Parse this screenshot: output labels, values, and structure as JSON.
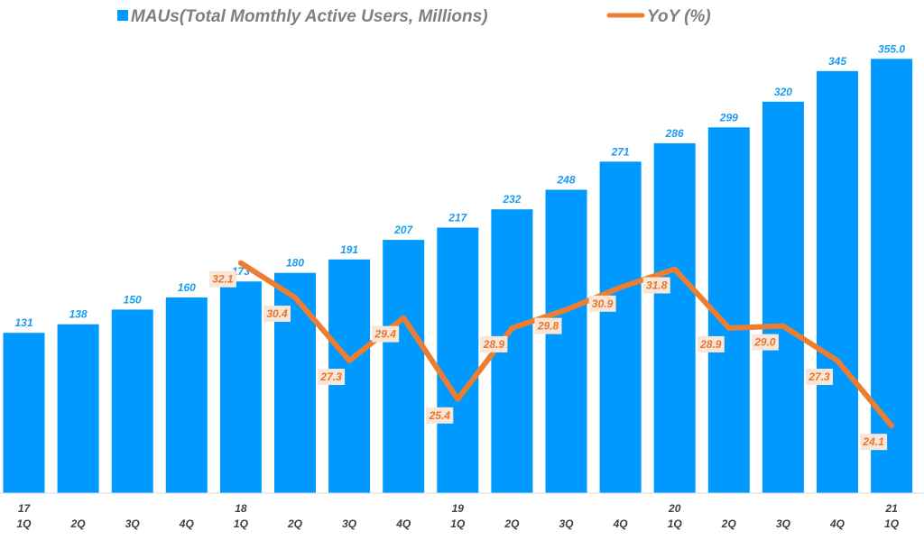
{
  "chart_data": {
    "type": "bar",
    "title": "",
    "xlabel": "",
    "ylabel": "",
    "legend_position": "top",
    "categories": [
      "17 1Q",
      "2Q",
      "3Q",
      "4Q",
      "18 1Q",
      "2Q",
      "3Q",
      "4Q",
      "19 1Q",
      "2Q",
      "3Q",
      "4Q",
      "20 1Q",
      "2Q",
      "3Q",
      "4Q",
      "21 1Q"
    ],
    "category_years": [
      "17",
      "",
      "",
      "",
      "18",
      "",
      "",
      "",
      "19",
      "",
      "",
      "",
      "20",
      "",
      "",
      "",
      "21"
    ],
    "category_quarters": [
      "1Q",
      "2Q",
      "3Q",
      "4Q",
      "1Q",
      "2Q",
      "3Q",
      "4Q",
      "1Q",
      "2Q",
      "3Q",
      "4Q",
      "1Q",
      "2Q",
      "3Q",
      "4Q",
      "1Q"
    ],
    "series": [
      {
        "name": "MAUs(Total Momthly Active Users, Millions)",
        "type": "bar",
        "color": "#0099ff",
        "values": [
          131,
          138,
          150,
          160,
          173,
          180,
          191,
          207,
          217,
          232,
          248,
          271,
          286,
          299,
          320,
          345,
          355.0
        ],
        "labels": [
          "131",
          "138",
          "150",
          "160",
          "173",
          "180",
          "191",
          "207",
          "217",
          "232",
          "248",
          "271",
          "286",
          "299",
          "320",
          "345",
          "355.0"
        ]
      },
      {
        "name": "YoY (%)",
        "type": "line",
        "color": "#ed7d31",
        "values": [
          null,
          null,
          null,
          null,
          32.1,
          30.4,
          27.3,
          29.4,
          25.4,
          28.9,
          29.8,
          30.9,
          31.8,
          28.9,
          29.0,
          27.3,
          24.1
        ],
        "labels": [
          "",
          "",
          "",
          "",
          "32.1",
          "30.4",
          "27.3",
          "29.4",
          "25.4",
          "28.9",
          "29.8",
          "30.9",
          "31.8",
          "28.9",
          "29.0",
          "27.3",
          "24.1"
        ]
      }
    ],
    "ylim_bars": [
      0,
      400
    ],
    "ylim_line": [
      10,
      40
    ]
  }
}
